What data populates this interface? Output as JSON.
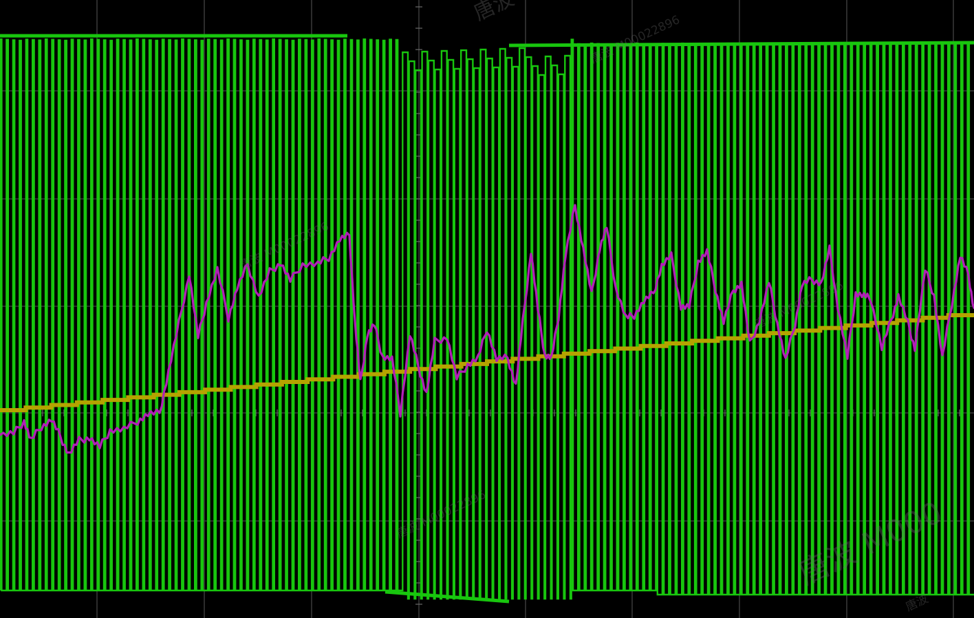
{
  "display": {
    "colors": {
      "background": "#000000",
      "grid": "#3a3a3a",
      "grid_tick": "#6b6b6b",
      "pwm_channel": "#18c60e",
      "magenta_channel": "#b21fb8",
      "yellow_channel": "#b5a300"
    },
    "pwm_trace": {
      "pulse_count": 150,
      "segments": [
        {
          "from_pulse": 0,
          "to_pulse": 62,
          "level": "high"
        },
        {
          "from_pulse": 62,
          "to_pulse": 88,
          "level": "low"
        },
        {
          "from_pulse": 88,
          "to_pulse": 150,
          "level": "high"
        }
      ]
    },
    "yellow_trace": {
      "shape": "staircase-ramp",
      "start_value": 0.0,
      "end_value": 1.0
    },
    "magenta_trace": {
      "shape": "noisy-rising-waveform"
    }
  },
  "watermarks": [
    {
      "text": "唐波 M00022896"
    },
    {
      "text": "唐波 M00022896"
    },
    {
      "text": "唐波 M00022896"
    },
    {
      "text": "唐波 M00022896"
    },
    {
      "text": "唐波 M00022896"
    },
    {
      "text": "唐波 M000"
    },
    {
      "text": "唐波"
    }
  ]
}
